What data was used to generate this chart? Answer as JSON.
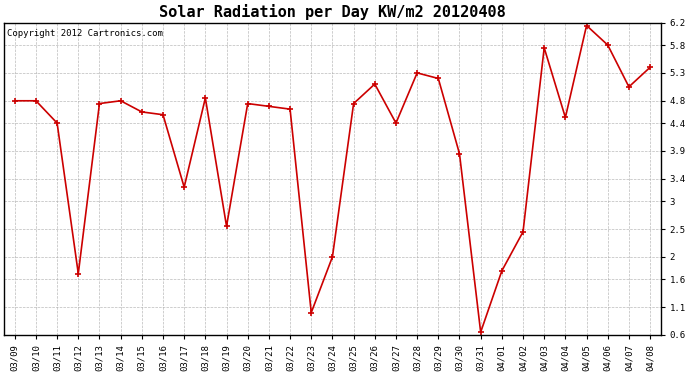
{
  "title": "Solar Radiation per Day KW/m2 20120408",
  "copyright_text": "Copyright 2012 Cartronics.com",
  "dates": [
    "03/09",
    "03/10",
    "03/11",
    "03/12",
    "03/13",
    "03/14",
    "03/15",
    "03/16",
    "03/17",
    "03/18",
    "03/19",
    "03/20",
    "03/21",
    "03/22",
    "03/23",
    "03/24",
    "03/25",
    "03/26",
    "03/27",
    "03/28",
    "03/29",
    "03/30",
    "03/31",
    "04/01",
    "04/02",
    "04/03",
    "04/04",
    "04/05",
    "04/06",
    "04/07",
    "04/08"
  ],
  "values": [
    4.8,
    4.8,
    4.4,
    1.7,
    4.75,
    4.8,
    4.6,
    4.55,
    3.25,
    4.85,
    2.55,
    4.75,
    4.7,
    4.65,
    1.0,
    2.0,
    4.75,
    5.1,
    4.4,
    5.3,
    5.2,
    3.85,
    0.65,
    1.75,
    2.45,
    5.75,
    4.5,
    6.15,
    5.8,
    5.05,
    5.4
  ],
  "line_color": "#cc0000",
  "marker": "+",
  "marker_size": 4,
  "marker_linewidth": 1.2,
  "linewidth": 1.2,
  "bg_color": "#ffffff",
  "plot_bg_color": "#ffffff",
  "grid_color": "#aaaaaa",
  "grid_linestyle": "--",
  "ylim_min": 0.6,
  "ylim_max": 6.2,
  "yticks": [
    0.6,
    1.1,
    1.6,
    2.0,
    2.5,
    3.0,
    3.4,
    3.9,
    4.4,
    4.8,
    5.3,
    5.8,
    6.2
  ],
  "title_fontsize": 11,
  "tick_fontsize": 6.5,
  "copyright_fontsize": 6.5
}
